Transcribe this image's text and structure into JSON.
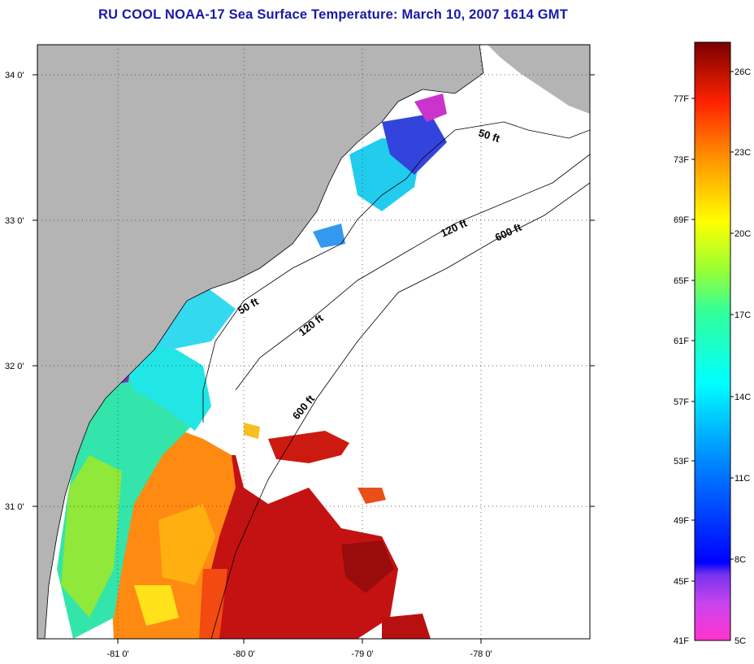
{
  "title": "RU COOL  NOAA-17  Sea Surface Temperature:  March 10, 2007 1614 GMT",
  "lat_labels": [
    "34 0'",
    "33 0'",
    "32 0'",
    "31 0'"
  ],
  "lon_labels": [
    "-81 0'",
    "-80 0'",
    "-79 0'",
    "-78 0'"
  ],
  "contour_labels": [
    "50 ft",
    "120 ft",
    "600 ft",
    "50 ft",
    "120 ft",
    "600 ft"
  ],
  "colorbar": {
    "fahrenheit": [
      "77F",
      "73F",
      "69F",
      "65F",
      "61F",
      "57F",
      "53F",
      "49F",
      "45F",
      "41F"
    ],
    "celsius": [
      "26C",
      "23C",
      "20C",
      "17C",
      "14C",
      "11C",
      "8C",
      "5C"
    ]
  },
  "colors": {
    "land": "#b4b4b4",
    "title": "#1a1aa8"
  }
}
